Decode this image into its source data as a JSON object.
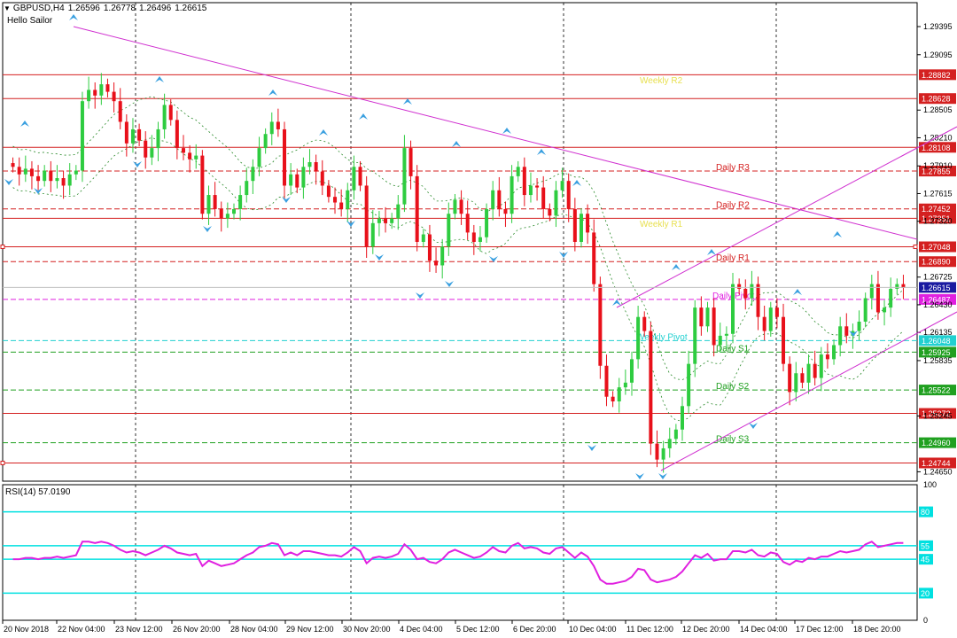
{
  "header": {
    "symbol": "GBPUSD,H4",
    "open": "1.26596",
    "high": "1.26778",
    "low": "1.26496",
    "close": "1.26615",
    "indicator": "Hello Sailor"
  },
  "rsi_header": "RSI(14) 57.0190",
  "colors": {
    "bull": "#2ecc40",
    "bear": "#e8101a",
    "resistance": "#d42020",
    "support": "#20a020",
    "pivot": "#e020e0",
    "weekly_pivot": "#20d0d0",
    "trend": "#d030d0",
    "rsi_line": "#e020e0",
    "rsi_level": "#00e0e0",
    "marker": "#3aa0e0"
  },
  "chart_data": [
    {
      "type": "candlestick",
      "title": "GBPUSD,H4",
      "x_ticks": [
        "20 Nov 2018",
        "22 Nov 04:00",
        "23 Nov 12:00",
        "26 Nov 20:00",
        "28 Nov 04:00",
        "29 Nov 12:00",
        "30 Nov 20:00",
        "4 Dec 04:00",
        "5 Dec 12:00",
        "6 Dec 20:00",
        "10 Dec 04:00",
        "11 Dec 12:00",
        "12 Dec 20:00",
        "14 Dec 04:00",
        "17 Dec 12:00",
        "18 Dec 20:00"
      ],
      "y_ticks": [
        "1.29395",
        "1.29095",
        "1.28505",
        "1.28210",
        "1.27910",
        "1.27615",
        "1.27320",
        "1.26725",
        "1.26430",
        "1.26135",
        "1.25835",
        "1.25245",
        "1.24650"
      ],
      "ylim": [
        1.2455,
        1.2965
      ],
      "current_price": "1.26615",
      "levels": [
        {
          "price": 1.28882,
          "label": "1.28882",
          "style": "solid",
          "color": "#d42020"
        },
        {
          "price": 1.28628,
          "label": "1.28628",
          "style": "solid",
          "color": "#d42020"
        },
        {
          "price": 1.28108,
          "label": "1.28108",
          "style": "solid",
          "color": "#d42020"
        },
        {
          "price": 1.27855,
          "label": "1.27855",
          "style": "dash",
          "color": "#d42020",
          "name": "Daily R3"
        },
        {
          "price": 1.27452,
          "label": "1.27452",
          "style": "dash",
          "color": "#d42020",
          "name": "Daily R2"
        },
        {
          "price": 1.27351,
          "label": "1.27351",
          "style": "solid",
          "color": "#d42020"
        },
        {
          "price": 1.27048,
          "label": "1.27048",
          "style": "solid",
          "color": "#d42020"
        },
        {
          "price": 1.2689,
          "label": "1.26890",
          "style": "dash",
          "color": "#d42020",
          "name": "Daily R1"
        },
        {
          "price": 1.26487,
          "label": "1.26487",
          "style": "dash",
          "color": "#e020e0",
          "name": "Daily Pivot"
        },
        {
          "price": 1.26048,
          "label": "1.26048",
          "style": "dash",
          "color": "#20d0d0",
          "name": "Weekly Pivot"
        },
        {
          "price": 1.25925,
          "label": "1.25925",
          "style": "dash",
          "color": "#20a020",
          "name": "Daily S1"
        },
        {
          "price": 1.25522,
          "label": "1.25522",
          "style": "dash",
          "color": "#20a020",
          "name": "Daily S2"
        },
        {
          "price": 1.25272,
          "label": "1.25272",
          "style": "solid",
          "color": "#d42020"
        },
        {
          "price": 1.2496,
          "label": "1.24960",
          "style": "dash",
          "color": "#20a020",
          "name": "Daily S3"
        },
        {
          "price": 1.24744,
          "label": "1.24744",
          "style": "solid",
          "color": "#d42020"
        }
      ],
      "weekly_labels": [
        {
          "name": "Weekly R2",
          "price": 1.2883
        },
        {
          "name": "Weekly R1",
          "price": 1.273
        }
      ],
      "closes": [
        1.279,
        1.2782,
        1.2788,
        1.278,
        1.2775,
        1.2786,
        1.2775,
        1.2778,
        1.277,
        1.2782,
        1.2786,
        1.286,
        1.2872,
        1.2866,
        1.2878,
        1.287,
        1.286,
        1.2838,
        1.2815,
        1.283,
        1.2818,
        1.28,
        1.281,
        1.283,
        1.2856,
        1.284,
        1.281,
        1.2805,
        1.2798,
        1.2802,
        1.274,
        1.276,
        1.2745,
        1.2735,
        1.274,
        1.2745,
        1.276,
        1.2775,
        1.279,
        1.281,
        1.2825,
        1.2838,
        1.283,
        1.277,
        1.2782,
        1.2768,
        1.279,
        1.2795,
        1.2785,
        1.277,
        1.2758,
        1.2752,
        1.2745,
        1.2765,
        1.279,
        1.277,
        1.2705,
        1.273,
        1.2735,
        1.273,
        1.2735,
        1.275,
        1.281,
        1.278,
        1.271,
        1.2718,
        1.269,
        1.2685,
        1.2705,
        1.274,
        1.2755,
        1.274,
        1.272,
        1.271,
        1.2715,
        1.2745,
        1.2765,
        1.2745,
        1.274,
        1.278,
        1.279,
        1.276,
        1.277,
        1.2768,
        1.2745,
        1.2738,
        1.2765,
        1.2775,
        1.2745,
        1.271,
        1.274,
        1.272,
        1.2665,
        1.2578,
        1.2545,
        1.254,
        1.2555,
        1.256,
        1.2585,
        1.263,
        1.2615,
        1.2495,
        1.2478,
        1.249,
        1.25,
        1.251,
        1.2535,
        1.258,
        1.264,
        1.262,
        1.264,
        1.26,
        1.261,
        1.2612,
        1.2665,
        1.266,
        1.265,
        1.2665,
        1.263,
        1.2615,
        1.264,
        1.263,
        1.258,
        1.255,
        1.257,
        1.256,
        1.258,
        1.2565,
        1.259,
        1.2585,
        1.26,
        1.262,
        1.261,
        1.2615,
        1.2625,
        1.265,
        1.2665,
        1.2635,
        1.264,
        1.266,
        1.2665,
        1.2661
      ]
    },
    {
      "type": "line",
      "title": "RSI(14) 57.0190",
      "ylim": [
        0,
        100
      ],
      "y_ticks": [
        "100",
        "80",
        "55",
        "45",
        "20",
        "0"
      ],
      "levels": [
        80,
        55,
        45,
        20
      ],
      "values": [
        45,
        45,
        46,
        46,
        45,
        46,
        46,
        47,
        46,
        47,
        48,
        58,
        58,
        57,
        58,
        57,
        55,
        52,
        50,
        51,
        50,
        48,
        50,
        52,
        55,
        53,
        50,
        49,
        48,
        49,
        40,
        44,
        42,
        40,
        41,
        42,
        45,
        48,
        50,
        54,
        55,
        57,
        56,
        48,
        50,
        48,
        51,
        51,
        50,
        49,
        48,
        48,
        47,
        50,
        54,
        51,
        42,
        46,
        47,
        46,
        47,
        49,
        56,
        52,
        45,
        46,
        43,
        42,
        45,
        50,
        52,
        50,
        48,
        46,
        47,
        50,
        54,
        51,
        50,
        55,
        57,
        53,
        54,
        53,
        50,
        49,
        53,
        54,
        50,
        46,
        50,
        47,
        40,
        30,
        27,
        27,
        28,
        29,
        32,
        38,
        37,
        30,
        28,
        29,
        30,
        32,
        36,
        42,
        48,
        46,
        49,
        44,
        45,
        45,
        51,
        51,
        50,
        52,
        48,
        47,
        50,
        49,
        43,
        41,
        44,
        43,
        46,
        45,
        47,
        47,
        49,
        51,
        50,
        51,
        52,
        56,
        58,
        54,
        55,
        56,
        57,
        57
      ]
    }
  ]
}
